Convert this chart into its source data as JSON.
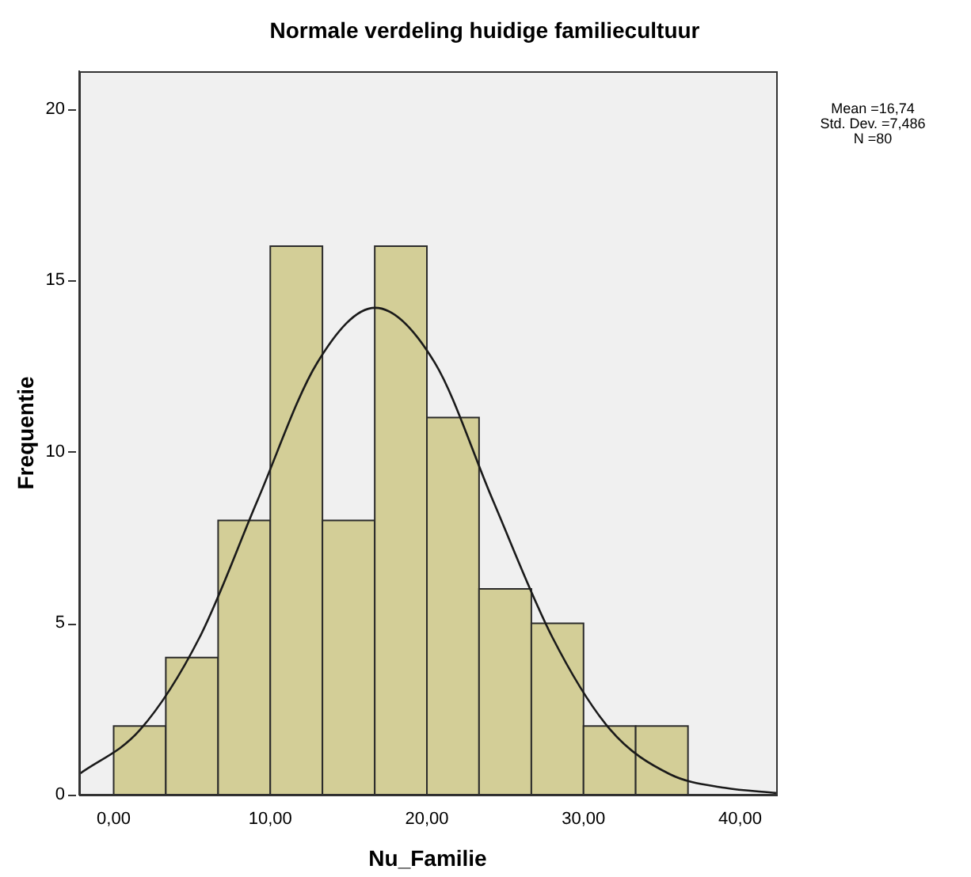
{
  "chart_data": {
    "type": "histogram",
    "title": "Normale verdeling huidige familiecultuur",
    "xlabel": "Nu_Familie",
    "ylabel": "Frequentie",
    "bins": [
      0,
      3.33,
      6.67,
      10,
      13.33,
      16.67,
      20,
      23.33,
      26.67,
      30,
      33.33,
      36.67
    ],
    "values": [
      2,
      4,
      8,
      16,
      8,
      16,
      11,
      6,
      5,
      2,
      2
    ],
    "color": "#d3ce97",
    "series": [
      {
        "type": "line",
        "color": "#1a1a1a",
        "x": [
          -2.2,
          1.7,
          5.5,
          9.2,
          13,
          16.7,
          20.5,
          24.2,
          28,
          31.7,
          35.5,
          39,
          42.3
        ],
        "values": [
          0.6,
          1.9,
          4.6,
          8.6,
          12.6,
          14.2,
          12.6,
          8.6,
          4.6,
          1.9,
          0.6,
          0.2,
          0.05
        ]
      }
    ],
    "xlim": [
      -2.2,
      42.3
    ],
    "ylim": [
      0,
      21.1
    ],
    "xticks": [
      {
        "value": 0,
        "label": "0,00"
      },
      {
        "value": 10,
        "label": "10,00"
      },
      {
        "value": 20,
        "label": "20,00"
      },
      {
        "value": 30,
        "label": "30,00"
      },
      {
        "value": 40,
        "label": "40,00"
      }
    ],
    "yticks": [
      0,
      5,
      10,
      15,
      20
    ],
    "grid": false,
    "legend": false,
    "marker": "none",
    "annotations": [
      "Mean =16,74",
      "Std. Dev. =7,486",
      "N =80"
    ]
  }
}
